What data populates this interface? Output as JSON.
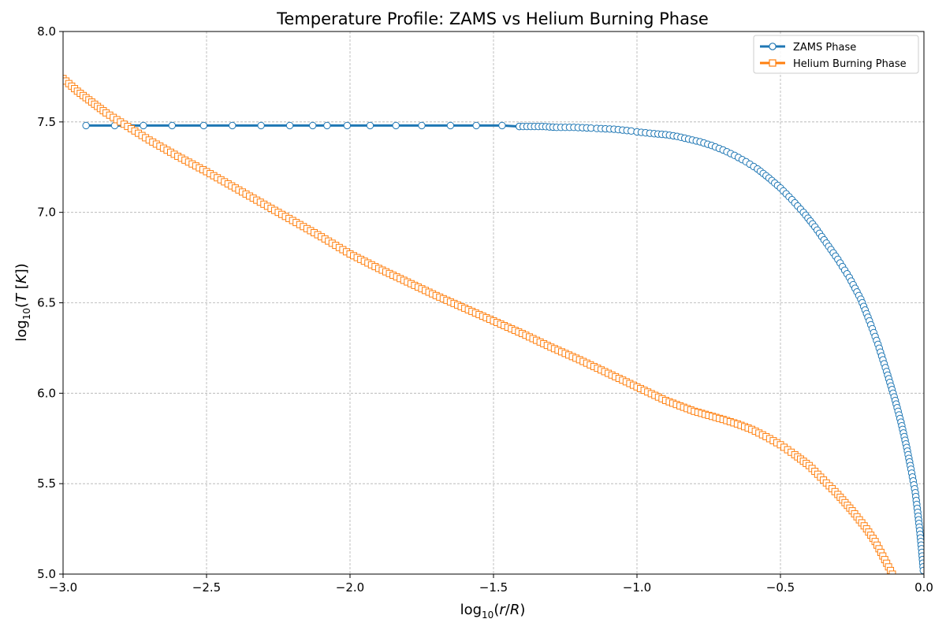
{
  "chart_data": {
    "type": "line",
    "title": "Temperature Profile: ZAMS vs Helium Burning Phase",
    "xlabel_html": "log<tspan baseline-shift='sub' font-size='12'>10</tspan>(<tspan font-style='italic'>r</tspan>/<tspan font-style='italic'>R</tspan>)",
    "xlim": [
      -3.0,
      0.0
    ],
    "ylim": [
      5.0,
      8.0
    ],
    "x_ticks": [
      "−3.0",
      "−2.5",
      "−2.0",
      "−1.5",
      "−1.0",
      "−0.5",
      "0.0"
    ],
    "y_ticks": [
      "5.0",
      "5.5",
      "6.0",
      "6.5",
      "7.0",
      "7.5",
      "8.0"
    ],
    "grid": true,
    "legend_position": "top-right",
    "series": [
      {
        "name": "ZAMS Phase",
        "color": "#1f77b4",
        "marker": "circle",
        "points": [
          [
            -2.92,
            7.48
          ],
          [
            -2.82,
            7.48
          ],
          [
            -2.72,
            7.48
          ],
          [
            -2.62,
            7.48
          ],
          [
            -2.51,
            7.48
          ],
          [
            -2.41,
            7.48
          ],
          [
            -2.31,
            7.48
          ],
          [
            -2.21,
            7.48
          ],
          [
            -2.13,
            7.48
          ],
          [
            -2.08,
            7.48
          ],
          [
            -2.01,
            7.48
          ],
          [
            -1.93,
            7.48
          ],
          [
            -1.84,
            7.48
          ],
          [
            -1.75,
            7.48
          ],
          [
            -1.65,
            7.48
          ],
          [
            -1.56,
            7.48
          ],
          [
            -1.47,
            7.48
          ],
          [
            -1.41,
            7.475
          ],
          [
            -1.37,
            7.475
          ],
          [
            -1.33,
            7.475
          ],
          [
            -1.28,
            7.47
          ],
          [
            -1.25,
            7.47
          ],
          [
            -1.22,
            7.47
          ],
          [
            -1.19,
            7.468
          ],
          [
            -1.16,
            7.466
          ],
          [
            -1.14,
            7.464
          ],
          [
            -1.11,
            7.462
          ],
          [
            -1.08,
            7.46
          ],
          [
            -1.05,
            7.455
          ],
          [
            -1.02,
            7.45
          ],
          [
            -1.0,
            7.445
          ],
          [
            -0.97,
            7.44
          ],
          [
            -0.94,
            7.435
          ],
          [
            -0.9,
            7.43
          ],
          [
            -0.86,
            7.42
          ],
          [
            -0.82,
            7.405
          ],
          [
            -0.78,
            7.39
          ],
          [
            -0.74,
            7.37
          ],
          [
            -0.7,
            7.345
          ],
          [
            -0.66,
            7.315
          ],
          [
            -0.62,
            7.28
          ],
          [
            -0.58,
            7.24
          ],
          [
            -0.54,
            7.19
          ],
          [
            -0.5,
            7.135
          ],
          [
            -0.46,
            7.07
          ],
          [
            -0.42,
            7.0
          ],
          [
            -0.38,
            6.92
          ],
          [
            -0.34,
            6.83
          ],
          [
            -0.3,
            6.74
          ],
          [
            -0.26,
            6.64
          ],
          [
            -0.22,
            6.52
          ],
          [
            -0.19,
            6.4
          ],
          [
            -0.16,
            6.27
          ],
          [
            -0.13,
            6.12
          ],
          [
            -0.1,
            5.96
          ],
          [
            -0.08,
            5.84
          ],
          [
            -0.06,
            5.7
          ],
          [
            -0.045,
            5.58
          ],
          [
            -0.03,
            5.45
          ],
          [
            -0.02,
            5.32
          ],
          [
            -0.012,
            5.2
          ],
          [
            -0.006,
            5.1
          ],
          [
            -0.002,
            5.02
          ]
        ]
      },
      {
        "name": "Helium Burning Phase",
        "color": "#ff7f0e",
        "marker": "square",
        "points": [
          [
            -3.0,
            7.74
          ],
          [
            -2.95,
            7.67
          ],
          [
            -2.9,
            7.61
          ],
          [
            -2.85,
            7.55
          ],
          [
            -2.8,
            7.5
          ],
          [
            -2.75,
            7.45
          ],
          [
            -2.7,
            7.4
          ],
          [
            -2.6,
            7.31
          ],
          [
            -2.5,
            7.225
          ],
          [
            -2.4,
            7.135
          ],
          [
            -2.3,
            7.045
          ],
          [
            -2.2,
            6.955
          ],
          [
            -2.1,
            6.865
          ],
          [
            -2.0,
            6.77
          ],
          [
            -1.9,
            6.69
          ],
          [
            -1.8,
            6.615
          ],
          [
            -1.7,
            6.54
          ],
          [
            -1.6,
            6.47
          ],
          [
            -1.5,
            6.4
          ],
          [
            -1.4,
            6.33
          ],
          [
            -1.3,
            6.255
          ],
          [
            -1.2,
            6.185
          ],
          [
            -1.1,
            6.11
          ],
          [
            -1.0,
            6.035
          ],
          [
            -0.9,
            5.96
          ],
          [
            -0.8,
            5.9
          ],
          [
            -0.7,
            5.855
          ],
          [
            -0.65,
            5.83
          ],
          [
            -0.6,
            5.8
          ],
          [
            -0.55,
            5.76
          ],
          [
            -0.5,
            5.715
          ],
          [
            -0.45,
            5.66
          ],
          [
            -0.4,
            5.6
          ],
          [
            -0.35,
            5.52
          ],
          [
            -0.3,
            5.44
          ],
          [
            -0.25,
            5.35
          ],
          [
            -0.2,
            5.25
          ],
          [
            -0.17,
            5.18
          ],
          [
            -0.15,
            5.12
          ],
          [
            -0.13,
            5.06
          ],
          [
            -0.11,
            5.0
          ]
        ]
      }
    ]
  }
}
